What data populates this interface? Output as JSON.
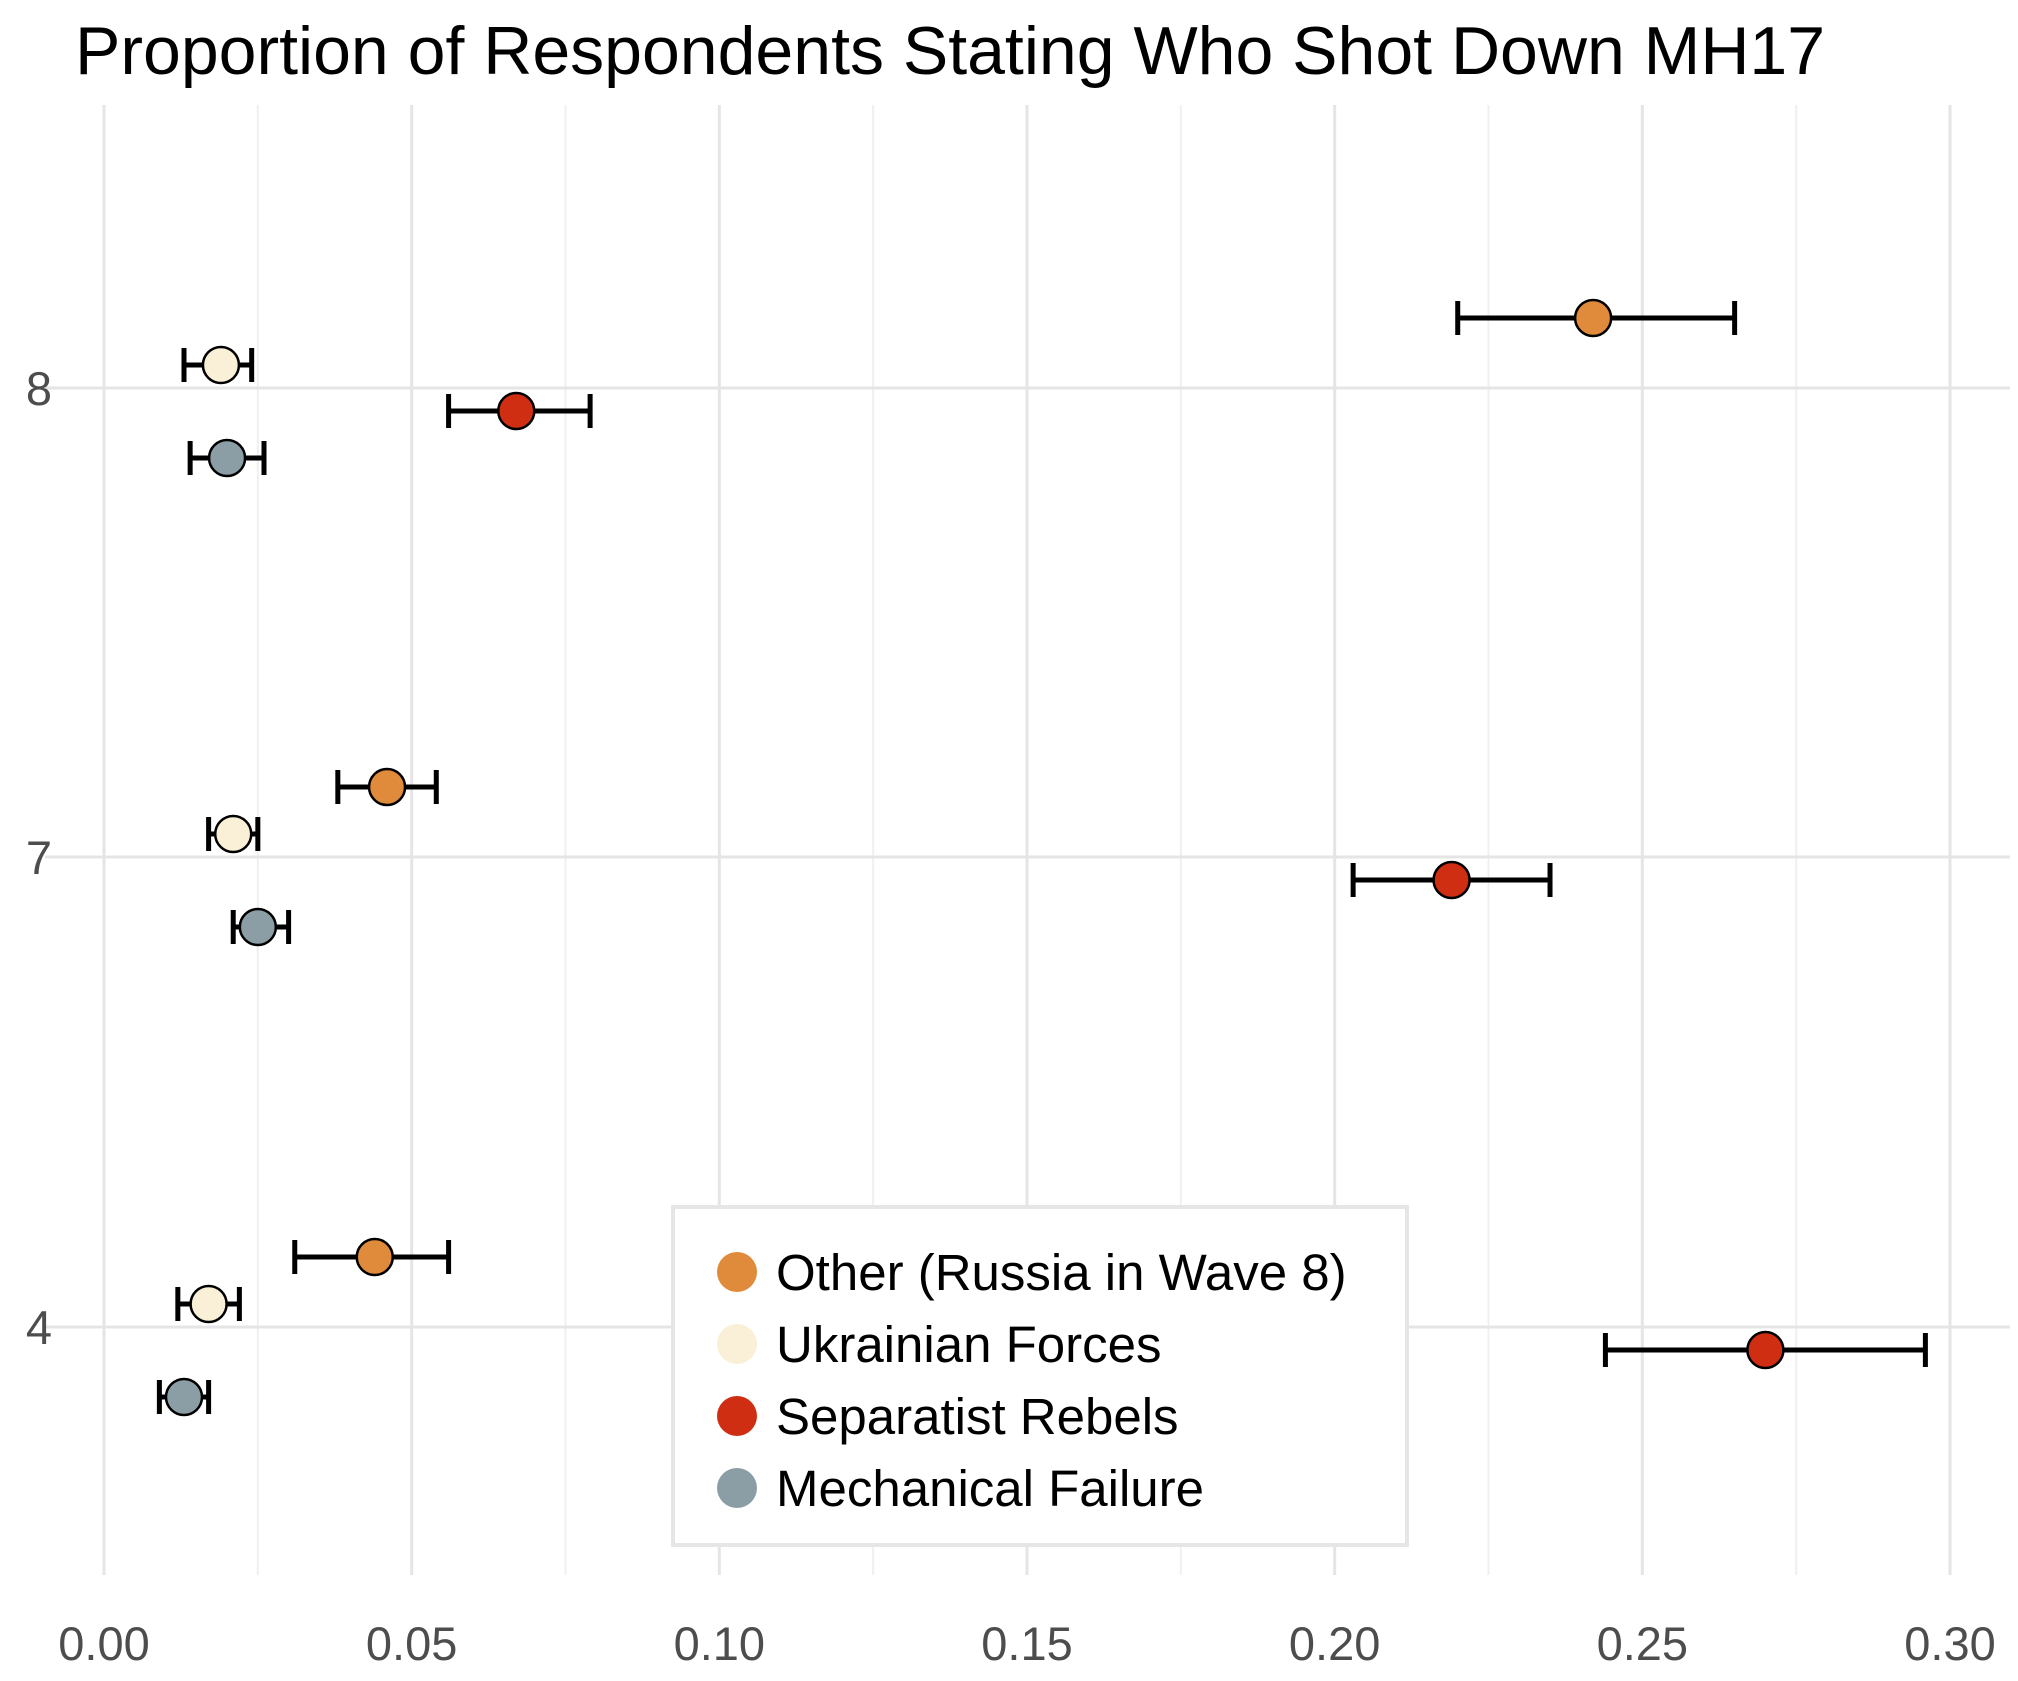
{
  "chart_data": {
    "type": "scatter",
    "title": "Proportion of Respondents Stating Who Shot Down MH17",
    "xlabel": "",
    "ylabel": "",
    "xlim": [
      0.0,
      0.3
    ],
    "x_ticks": [
      "0.00",
      "0.05",
      "0.10",
      "0.15",
      "0.20",
      "0.25",
      "0.30"
    ],
    "x_tick_values": [
      0.0,
      0.05,
      0.1,
      0.15,
      0.2,
      0.25,
      0.3
    ],
    "categories": [
      "8",
      "7",
      "4"
    ],
    "grid": true,
    "legend_position": "bottom-center",
    "error_bars": true,
    "series": [
      {
        "name": "Other (Russia in Wave 8)",
        "color": "#E08A3C",
        "points": [
          {
            "wave": "8",
            "value": 0.242,
            "low": 0.22,
            "high": 0.265
          },
          {
            "wave": "7",
            "value": 0.046,
            "low": 0.038,
            "high": 0.054
          },
          {
            "wave": "4",
            "value": 0.044,
            "low": 0.031,
            "high": 0.056
          }
        ]
      },
      {
        "name": "Ukrainian Forces",
        "color": "#FAF0D7",
        "points": [
          {
            "wave": "8",
            "value": 0.019,
            "low": 0.013,
            "high": 0.024
          },
          {
            "wave": "7",
            "value": 0.021,
            "low": 0.017,
            "high": 0.025
          },
          {
            "wave": "4",
            "value": 0.017,
            "low": 0.012,
            "high": 0.022
          }
        ]
      },
      {
        "name": "Separatist Rebels",
        "color": "#D02E13",
        "points": [
          {
            "wave": "8",
            "value": 0.067,
            "low": 0.056,
            "high": 0.079
          },
          {
            "wave": "7",
            "value": 0.219,
            "low": 0.203,
            "high": 0.235
          },
          {
            "wave": "4",
            "value": 0.27,
            "low": 0.244,
            "high": 0.296
          }
        ]
      },
      {
        "name": "Mechanical Failure",
        "color": "#8C9EA5",
        "points": [
          {
            "wave": "8",
            "value": 0.02,
            "low": 0.014,
            "high": 0.026
          },
          {
            "wave": "7",
            "value": 0.025,
            "low": 0.021,
            "high": 0.03
          },
          {
            "wave": "4",
            "value": 0.013,
            "low": 0.009,
            "high": 0.017
          }
        ]
      }
    ]
  }
}
